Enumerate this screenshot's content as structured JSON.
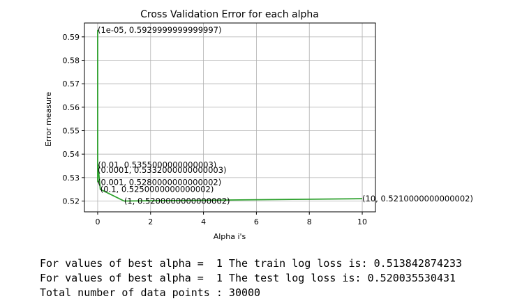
{
  "chart_data": {
    "type": "line",
    "title": "Cross Validation Error for each alpha",
    "xlabel": "Alpha i's",
    "ylabel": "Error measure",
    "xlim": [
      -0.5,
      10.5
    ],
    "ylim": [
      0.5154,
      0.5959
    ],
    "xticks": [
      0,
      2,
      4,
      6,
      8,
      10
    ],
    "xtick_labels": [
      "0",
      "2",
      "4",
      "6",
      "8",
      "10"
    ],
    "yticks": [
      0.52,
      0.53,
      0.54,
      0.55,
      0.56,
      0.57,
      0.58,
      0.59
    ],
    "ytick_labels": [
      "0.52",
      "0.53",
      "0.54",
      "0.55",
      "0.56",
      "0.57",
      "0.58",
      "0.59"
    ],
    "grid": true,
    "line_color": "#2ca02c",
    "x": [
      1e-05,
      0.0001,
      0.001,
      0.01,
      0.1,
      1,
      10
    ],
    "y": [
      0.593,
      0.5332,
      0.528,
      0.5355,
      0.525,
      0.52,
      0.521
    ],
    "annotations": [
      "(1e-05, 0.5929999999999997)",
      "(0.0001, 0.5332000000000003)",
      "(0.001, 0.5280000000000002)",
      "(0.01, 0.5355000000000003)",
      "(0.1, 0.5250000000000002)",
      "(1, 0.5200000000000002)",
      "(10, 0.5210000000000002)"
    ]
  },
  "output": {
    "line1": "For values of best alpha =  1 The train log loss is: 0.513842874233",
    "line2": "For values of best alpha =  1 The test log loss is: 0.520035530431",
    "line3": "Total number of data points : 30000"
  }
}
